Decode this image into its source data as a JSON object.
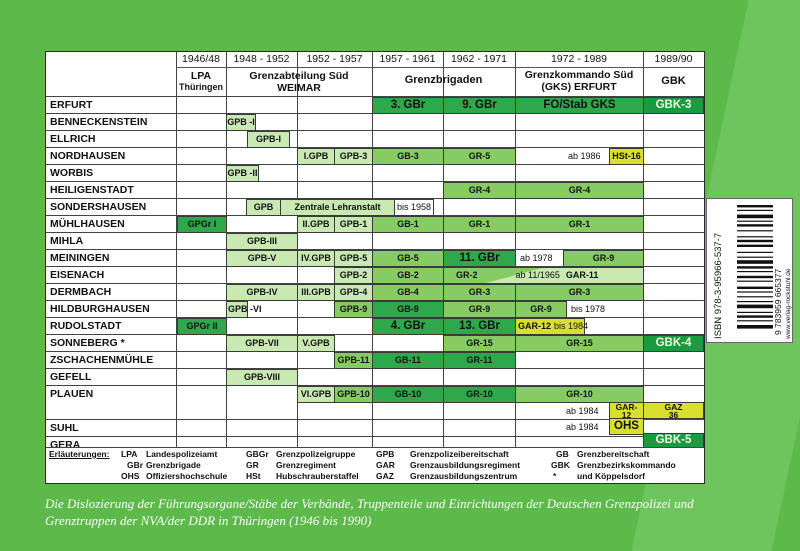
{
  "columns": {
    "years": [
      "1946/48",
      "1948 - 1952",
      "1952 - 1957",
      "1957 - 1961",
      "1962 - 1971",
      "1972 - 1989",
      "1989/90"
    ],
    "org_lpa": "LPA",
    "org_lpa_sub": "Thüringen",
    "org_grenzabteilung": "Grenzabteilung Süd",
    "org_grenzabteilung_sub": "WEIMAR",
    "org_grenzbrigaden": "Grenzbrigaden",
    "org_grenzkommando": "Grenzkommando Süd",
    "org_grenzkommando_sub": "(GKS) ERFURT",
    "org_gbk": "GBK"
  },
  "places": [
    "ERFURT",
    "BENNECKENSTEIN",
    "ELLRICH",
    "NORDHAUSEN",
    "WORBIS",
    "HEILIGENSTADT",
    "SONDERSHAUSEN",
    "MÜHLHAUSEN",
    "MIHLA",
    "MEININGEN",
    "EISENACH",
    "DERMBACH",
    "HILDBURGHAUSEN",
    "RUDOLSTADT",
    "SONNEBERG *",
    "ZSCHACHENMÜHLE",
    "GEFELL",
    "PLAUEN",
    "SUHL",
    "GERA"
  ],
  "cells": {
    "erfurt_3gbr": "3. GBr",
    "erfurt_9gbr": "9. GBr",
    "erfurt_fo": "FO/Stab GKS",
    "erfurt_gbk3": "GBK-3",
    "benn_gpb1": "GPB -I",
    "ellrich_gpb1": "GPB-I",
    "nord_igpb": "I.GPB",
    "nord_gpb3": "GPB-3",
    "nord_gb3": "GB-3",
    "nord_gr5": "GR-5",
    "nord_ab1986": "ab 1986",
    "nord_hst16": "HSt-16",
    "worbis_gpb2": "GPB -II",
    "heil_gr4a": "GR-4",
    "heil_gr4b": "GR-4",
    "sond_gpb": "GPB",
    "sond_zentrale": "Zentrale Lehranstalt",
    "sond_bis1958": "bis 1958",
    "muhl_gpgr1": "GPGr I",
    "muhl_iigpb": "II.GPB",
    "muhl_gpb1": "GPB-1",
    "muhl_gb1": "GB-1",
    "muhl_gr1a": "GR-1",
    "muhl_gr1b": "GR-1",
    "mihla_gpb3": "GPB-III",
    "mein_gpb5": "GPB-V",
    "mein_ivgpb": "IV.GPB",
    "mein_gpb5b": "GPB-5",
    "mein_gb5": "GB-5",
    "mein_11gbr": "11. GBr",
    "mein_ab1978": "ab 1978",
    "mein_gr9": "GR-9",
    "eis_gpb2": "GPB-2",
    "eis_gb2": "GB-2",
    "eis_gr2": "GR-2",
    "eis_ab111965": "ab 11/1965",
    "eis_gar11": "GAR-11",
    "derm_gpb4": "GPB-IV",
    "derm_iiigpb": "III.GPB",
    "derm_gpb4b": "GPB-4",
    "derm_gb4": "GB-4",
    "derm_gr3a": "GR-3",
    "derm_gr3b": "GR-3",
    "hild_gpb6": "GPB -VI",
    "hild_gpb9": "GPB-9",
    "hild_gb9": "GB-9",
    "hild_gr9": "GR-9",
    "hild_gr9b": "GR-9",
    "hild_bis1978": "bis 1978",
    "rud_gpgr2": "GPGr II",
    "rud_4gbr": "4. GBr",
    "rud_13gbr": "13. GBr",
    "rud_gar12": "GAR-12",
    "rud_bis1984": "bis 1984",
    "sonn_gpb7": "GPB-VII",
    "sonn_vgpb": "V.GPB",
    "sonn_gr15a": "GR-15",
    "sonn_gr15b": "GR-15",
    "sonn_gbk4": "GBK-4",
    "zsch_gpb11": "GPB-11",
    "zsch_gb11": "GB-11",
    "zsch_gr11": "GR-11",
    "gef_gpb8": "GPB-VIII",
    "plau_vigpb": "VI.GPB",
    "plau_gpb10": "GPB-10",
    "plau_gb10": "GB-10",
    "plau_gr10a": "GR-10",
    "plau_gr10b": "GR-10",
    "plau_ab1984": "ab 1984",
    "plau_gar": "GAR-",
    "plau_gar12": "12",
    "plau_gaz": "GAZ",
    "plau_gaz36": "36",
    "suhl_ab1984": "ab 1984",
    "suhl_ohs": "OHS",
    "gera_gbk5": "GBK-5"
  },
  "legend": {
    "title": "Erläuterungen:",
    "c1_abbr": [
      "LPA",
      "GBr",
      "OHS"
    ],
    "c1_text": [
      "Landespolizeiamt",
      "Grenzbrigade",
      "Offiziershochschule"
    ],
    "c2_abbr": [
      "GBGr",
      "GR",
      "HSt"
    ],
    "c2_text": [
      "Grenzpolizeigruppe",
      "Grenzregiment",
      "Hubschrauberstaffel"
    ],
    "c3_abbr": [
      "GPB",
      "GAR",
      "GAZ"
    ],
    "c3_text": [
      "Grenzpolizeibereitschaft",
      "Grenzausbildungsregiment",
      "Grenzausbildungszentrum"
    ],
    "c4_abbr": [
      "GB",
      "GBK",
      "*"
    ],
    "c4_text": [
      "Grenzbereitschaft",
      "Grenzbezirkskommando",
      "und Köppelsdorf"
    ]
  },
  "caption": "Die Dislozierung der Führungsorgane/Stäbe der Verbände, Truppenteile und Einrichtungen der Deutschen Grenzpolizei und Grenztruppen der NVA/der DDR in Thüringen (1946 bis 1990)",
  "sticker": {
    "isbn": "ISBN 978-3-95966-537-7",
    "barcode_digits": "9 783959 665377",
    "website": "www.verlag-rockstuhl.de"
  },
  "colors": {
    "background": "#5cb94a",
    "light_green": "#c9e9b3",
    "medium_green": "#87cc63",
    "green": "#2ea84a",
    "dark_green": "#1c9a3f",
    "yellow": "#d9df2f"
  }
}
